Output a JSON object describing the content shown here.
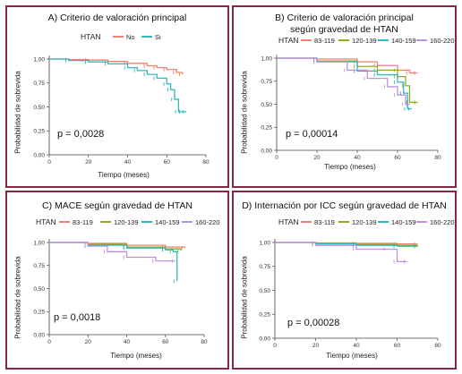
{
  "panels": [
    {
      "title": "A) Criterio de valoración principal",
      "title2": "",
      "legend_title": "HTAN",
      "series_labels": [
        "No",
        "Si"
      ],
      "ylabel": "Probabilidad de sobrevida",
      "xlabel": "Tiempo (meses)",
      "pvalue": "p = 0,0028"
    },
    {
      "title": "B) Criterio de valoración principal",
      "title2": "según gravedad de HTAN",
      "legend_title": "HTAN",
      "series_labels": [
        "83-119",
        "120-139",
        "140-159",
        "160-220"
      ],
      "ylabel": "Probabilidad de sobrevida",
      "xlabel": "Tiempo (meses)",
      "pvalue": "p = 0,00014"
    },
    {
      "title": "C) MACE según gravedad de HTAN",
      "title2": "",
      "legend_title": "HTAN",
      "series_labels": [
        "83-119",
        "120-139",
        "140-159",
        "160-220"
      ],
      "ylabel": "Probabilidad de sobrevida",
      "xlabel": "Tiempo (meses)",
      "pvalue": "p = 0,0018"
    },
    {
      "title": "D) Internación por ICC según gravedad de HTAN",
      "title2": "",
      "legend_title": "HTAN",
      "series_labels": [
        "83-119",
        "120-139",
        "140-159",
        "160-220"
      ],
      "ylabel": "Probabilidad de sobrevida",
      "xlabel": "Tiempo (meses)",
      "pvalue": "p = 0,00028"
    }
  ],
  "colors": {
    "frame": "#8a2740",
    "red": "#f08070",
    "green": "#8ab020",
    "teal": "#30b8c0",
    "purple": "#c090e0"
  },
  "chart_data": [
    {
      "type": "line",
      "title": "A) Criterio de valoración principal",
      "xlabel": "Tiempo (meses)",
      "ylabel": "Probabilidad de sobrevida",
      "xlim": [
        0,
        80
      ],
      "ylim": [
        0,
        1
      ],
      "xticks": [
        "0",
        "20",
        "40",
        "60",
        "80"
      ],
      "yticks": [
        "0,00",
        "0,25",
        "0,50",
        "0,75",
        "1,00"
      ],
      "series": [
        {
          "name": "No",
          "color": "#f08070",
          "x": [
            0,
            10,
            20,
            30,
            40,
            50,
            55,
            60,
            65,
            68
          ],
          "y": [
            1.0,
            0.995,
            0.99,
            0.975,
            0.955,
            0.93,
            0.91,
            0.89,
            0.86,
            0.84
          ]
        },
        {
          "name": "Si",
          "color": "#30b8c0",
          "x": [
            0,
            10,
            20,
            30,
            40,
            45,
            50,
            55,
            60,
            62,
            64,
            66,
            68,
            70
          ],
          "y": [
            1.0,
            0.985,
            0.97,
            0.95,
            0.91,
            0.88,
            0.84,
            0.8,
            0.74,
            0.68,
            0.58,
            0.45,
            0.45,
            0.45
          ]
        }
      ],
      "annotation": "p = 0,0028"
    },
    {
      "type": "line",
      "title": "B) Criterio de valoración principal según gravedad de HTAN",
      "xlabel": "Tiempo (meses)",
      "ylabel": "Probabilidad de sobrevida",
      "xlim": [
        0,
        80
      ],
      "ylim": [
        0,
        1
      ],
      "xticks": [
        "0",
        "20",
        "40",
        "60",
        "80"
      ],
      "yticks": [
        "0,00",
        "0,25",
        "0,50",
        "0,75",
        "1,00"
      ],
      "series": [
        {
          "name": "83-119",
          "color": "#f08070",
          "x": [
            0,
            20,
            40,
            50,
            60,
            66,
            70
          ],
          "y": [
            1.0,
            0.99,
            0.96,
            0.92,
            0.87,
            0.84,
            0.84
          ]
        },
        {
          "name": "120-139",
          "color": "#8ab020",
          "x": [
            0,
            20,
            40,
            50,
            60,
            64,
            66,
            70
          ],
          "y": [
            1.0,
            0.97,
            0.91,
            0.87,
            0.8,
            0.7,
            0.52,
            0.52
          ]
        },
        {
          "name": "140-159",
          "color": "#30b8c0",
          "x": [
            0,
            20,
            40,
            50,
            60,
            63,
            65,
            67
          ],
          "y": [
            1.0,
            0.96,
            0.86,
            0.82,
            0.74,
            0.62,
            0.45,
            0.45
          ]
        },
        {
          "name": "160-220",
          "color": "#c090e0",
          "x": [
            0,
            20,
            35,
            45,
            55,
            60,
            64,
            66
          ],
          "y": [
            1.0,
            0.96,
            0.87,
            0.78,
            0.69,
            0.6,
            0.5,
            0.5
          ]
        }
      ],
      "annotation": "p = 0,00014"
    },
    {
      "type": "line",
      "title": "C) MACE según gravedad de HTAN",
      "xlabel": "Tiempo (meses)",
      "ylabel": "Probabilidad de sobrevida",
      "xlim": [
        0,
        80
      ],
      "ylim": [
        0,
        1
      ],
      "xticks": [
        "0",
        "20",
        "40",
        "60",
        "80"
      ],
      "yticks": [
        "0,00",
        "0,25",
        "0,50",
        "0,75",
        "1,00"
      ],
      "series": [
        {
          "name": "83-119",
          "color": "#f08070",
          "x": [
            0,
            20,
            40,
            60,
            70
          ],
          "y": [
            1.0,
            0.99,
            0.97,
            0.95,
            0.94
          ]
        },
        {
          "name": "120-139",
          "color": "#8ab020",
          "x": [
            0,
            20,
            40,
            60,
            68
          ],
          "y": [
            1.0,
            0.98,
            0.95,
            0.93,
            0.91
          ]
        },
        {
          "name": "140-159",
          "color": "#30b8c0",
          "x": [
            0,
            20,
            40,
            60,
            64,
            66
          ],
          "y": [
            1.0,
            0.97,
            0.94,
            0.92,
            0.9,
            0.58
          ]
        },
        {
          "name": "160-220",
          "color": "#c090e0",
          "x": [
            0,
            20,
            30,
            40,
            55,
            65
          ],
          "y": [
            1.0,
            0.96,
            0.9,
            0.84,
            0.8,
            0.8
          ]
        }
      ],
      "annotation": "p = 0,0018"
    },
    {
      "type": "line",
      "title": "D) Internación por ICC según gravedad de HTAN",
      "xlabel": "Tiempo (meses)",
      "ylabel": "Probabilidad de sobrevida",
      "xlim": [
        0,
        80
      ],
      "ylim": [
        0,
        1
      ],
      "xticks": [
        "0",
        "20",
        "40",
        "60",
        "80"
      ],
      "yticks": [
        "0,00",
        "0,25",
        "0,50",
        "0,75",
        "1,00"
      ],
      "series": [
        {
          "name": "83-119",
          "color": "#f08070",
          "x": [
            0,
            20,
            40,
            60,
            70
          ],
          "y": [
            1.0,
            0.995,
            0.99,
            0.985,
            0.985
          ]
        },
        {
          "name": "120-139",
          "color": "#8ab020",
          "x": [
            0,
            20,
            40,
            60,
            70
          ],
          "y": [
            1.0,
            0.99,
            0.98,
            0.97,
            0.96
          ]
        },
        {
          "name": "140-159",
          "color": "#30b8c0",
          "x": [
            0,
            20,
            40,
            60,
            70
          ],
          "y": [
            1.0,
            0.985,
            0.97,
            0.96,
            0.96
          ]
        },
        {
          "name": "160-220",
          "color": "#c090e0",
          "x": [
            0,
            20,
            40,
            55,
            60,
            65
          ],
          "y": [
            1.0,
            0.97,
            0.93,
            0.93,
            0.8,
            0.8
          ]
        }
      ],
      "annotation": "p = 0,00028"
    }
  ]
}
